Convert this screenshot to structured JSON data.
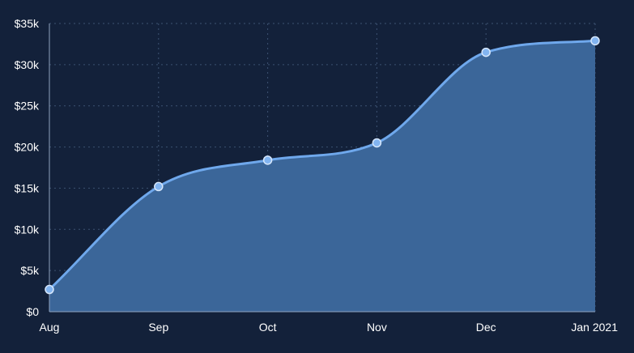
{
  "colors": {
    "background": "#13213a",
    "area_fill": "#3b6699",
    "line": "#6fa8ec",
    "point_fill": "#82b4f0",
    "point_stroke": "#d7e7fb",
    "grid": "#3c5272",
    "text": "#ffffff"
  },
  "chart_data": {
    "type": "area",
    "title": "",
    "xlabel": "",
    "ylabel": "",
    "categories": [
      "Aug",
      "Sep",
      "Oct",
      "Nov",
      "Dec",
      "Jan 2021"
    ],
    "series": [
      {
        "values": [
          2700,
          15200,
          18400,
          20500,
          31500,
          32900
        ]
      }
    ],
    "ylim": [
      0,
      35000
    ],
    "y_ticks": [
      0,
      5000,
      10000,
      15000,
      20000,
      25000,
      30000,
      35000
    ],
    "y_tick_labels": [
      "$0",
      "$5k",
      "$10k",
      "$15k",
      "$20k",
      "$25k",
      "$30k",
      "$35k"
    ],
    "grid": true,
    "curve": "smooth",
    "legend": "none"
  }
}
